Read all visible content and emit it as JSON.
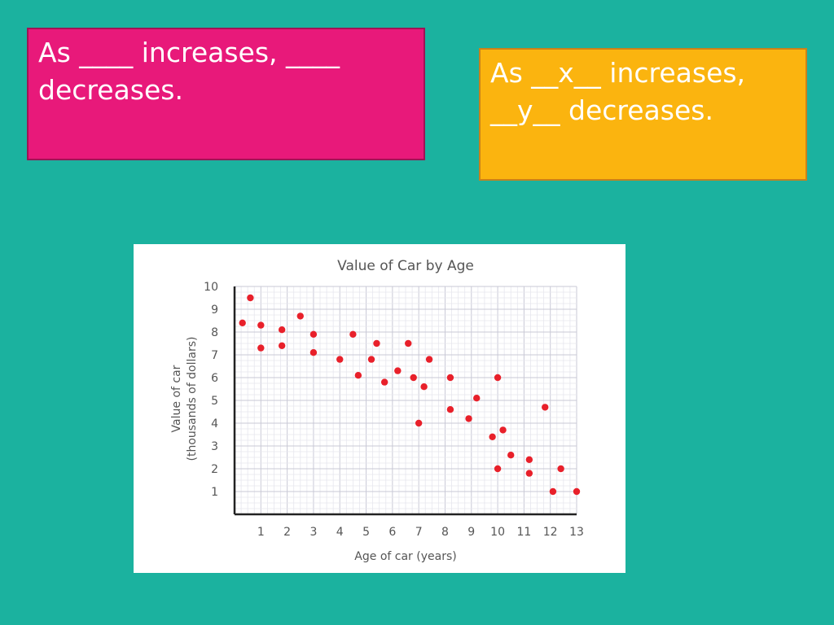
{
  "slide": {
    "sentence_blank": "As ____ increases, ____ decreases.",
    "sentence_filled": "As __x__ increases, __y__ decreases.",
    "colors": {
      "background": "#1bb29f",
      "pink_box": "#e8197a",
      "orange_box": "#fbb40f",
      "point": "#e8202a"
    }
  },
  "chart_data": {
    "type": "scatter",
    "title": "Value of Car by Age",
    "xlabel": "Age of car (years)",
    "ylabel_line1": "Value of car",
    "ylabel_line2": "(thousands of dollars)",
    "xlim": [
      0,
      13
    ],
    "ylim": [
      0,
      10
    ],
    "xticks": [
      "1",
      "2",
      "3",
      "4",
      "5",
      "6",
      "7",
      "8",
      "9",
      "10",
      "11",
      "12",
      "13"
    ],
    "yticks": [
      "1",
      "2",
      "3",
      "4",
      "5",
      "6",
      "7",
      "8",
      "9",
      "10"
    ],
    "grid": true,
    "points": [
      [
        0.3,
        8.4
      ],
      [
        0.6,
        9.5
      ],
      [
        1.0,
        8.3
      ],
      [
        1.0,
        7.3
      ],
      [
        1.8,
        8.1
      ],
      [
        1.8,
        7.4
      ],
      [
        2.5,
        8.7
      ],
      [
        3.0,
        7.9
      ],
      [
        3.0,
        7.1
      ],
      [
        4.0,
        6.8
      ],
      [
        4.5,
        7.9
      ],
      [
        4.7,
        6.1
      ],
      [
        5.2,
        6.8
      ],
      [
        5.4,
        7.5
      ],
      [
        5.7,
        5.8
      ],
      [
        6.2,
        6.3
      ],
      [
        6.6,
        7.5
      ],
      [
        6.8,
        6.0
      ],
      [
        7.0,
        4.0
      ],
      [
        7.2,
        5.6
      ],
      [
        7.4,
        6.8
      ],
      [
        8.2,
        6.0
      ],
      [
        8.2,
        4.6
      ],
      [
        8.9,
        4.2
      ],
      [
        9.2,
        5.1
      ],
      [
        9.8,
        3.4
      ],
      [
        10.0,
        6.0
      ],
      [
        10.0,
        2.0
      ],
      [
        10.2,
        3.7
      ],
      [
        10.5,
        2.6
      ],
      [
        11.2,
        2.4
      ],
      [
        11.2,
        1.8
      ],
      [
        11.8,
        4.7
      ],
      [
        12.1,
        1.0
      ],
      [
        12.4,
        2.0
      ],
      [
        13.0,
        1.0
      ]
    ]
  }
}
